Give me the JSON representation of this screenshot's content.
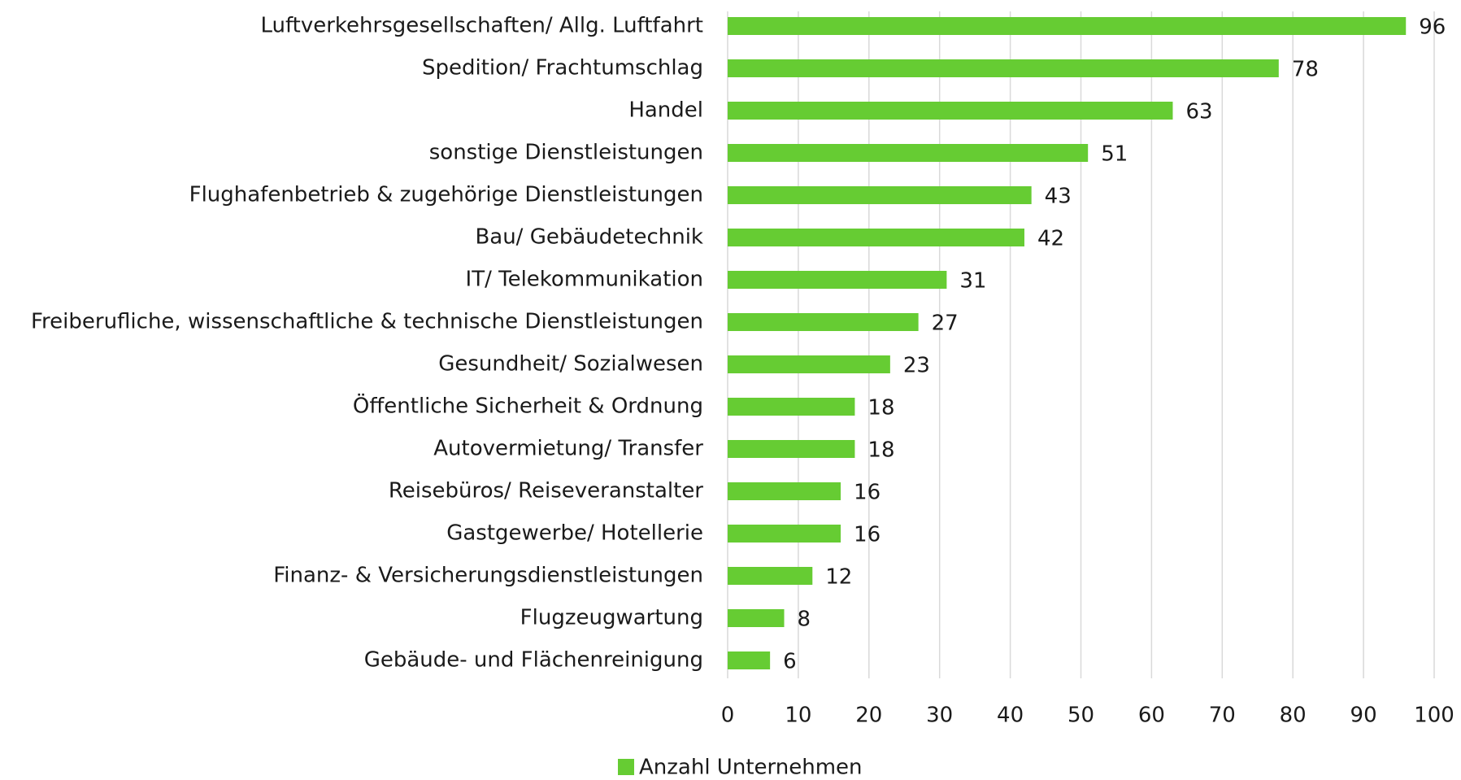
{
  "chart_data": {
    "type": "barh",
    "categories": [
      "Luftverkehrsgesellschaften/ Allg. Luftfahrt",
      "Spedition/ Frachtumschlag",
      "Handel",
      "sonstige Dienstleistungen",
      "Flughafenbetrieb & zugehörige Dienstleistungen",
      "Bau/ Gebäudetechnik",
      "IT/ Telekommunikation",
      "Freiberufliche, wissenschaftliche & technische Dienstleistungen",
      "Gesundheit/ Sozialwesen",
      "Öffentliche Sicherheit & Ordnung",
      "Autovermietung/ Transfer",
      "Reisebüros/ Reiseveranstalter",
      "Gastgewerbe/ Hotellerie",
      "Finanz- & Versicherungsdienstleistungen",
      "Flugzeugwartung",
      "Gebäude- und Flächenreinigung"
    ],
    "series": [
      {
        "name": "Anzahl Unternehmen",
        "color": "#66cc33",
        "values": [
          96,
          78,
          63,
          51,
          43,
          42,
          31,
          27,
          23,
          18,
          18,
          16,
          16,
          12,
          8,
          6
        ]
      }
    ],
    "xlim": [
      0,
      100
    ],
    "xticks": [
      0,
      10,
      20,
      30,
      40,
      50,
      60,
      70,
      80,
      90,
      100
    ],
    "grid": true,
    "legend": "bottom"
  }
}
